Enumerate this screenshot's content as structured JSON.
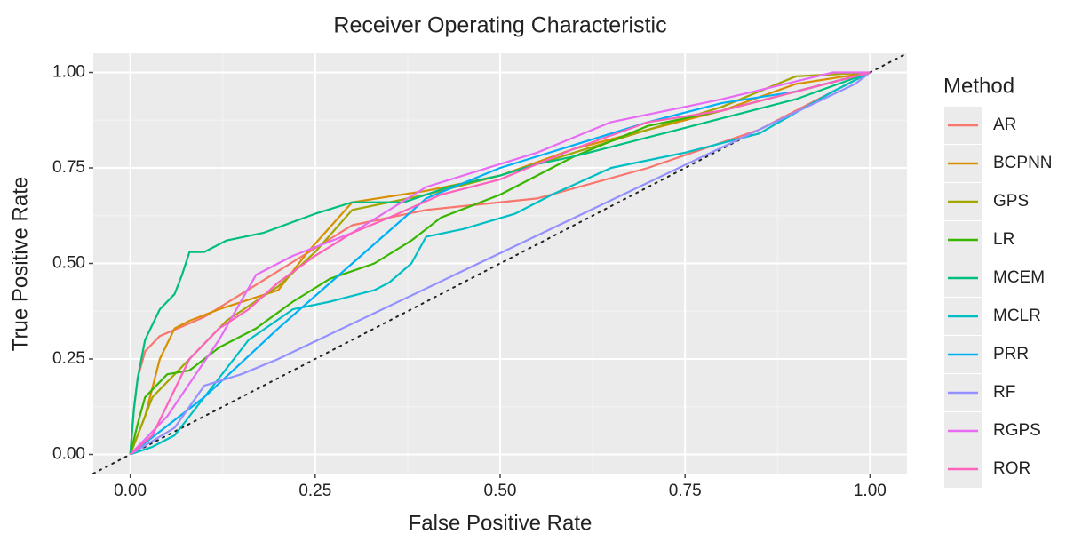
{
  "chart_data": {
    "type": "line",
    "title": "Receiver Operating Characteristic",
    "xlabel": "False Positive Rate",
    "ylabel": "True Positive Rate",
    "legend_title": "Method",
    "legend": "right",
    "grid": true,
    "xlim": [
      -0.05,
      1.05
    ],
    "ylim": [
      -0.05,
      1.05
    ],
    "xticks": [
      {
        "value": 0,
        "label": "0.00"
      },
      {
        "value": 0.25,
        "label": "0.25"
      },
      {
        "value": 0.5,
        "label": "0.50"
      },
      {
        "value": 0.75,
        "label": "0.75"
      },
      {
        "value": 1,
        "label": "1.00"
      }
    ],
    "yticks": [
      {
        "value": 0,
        "label": "0.00"
      },
      {
        "value": 0.25,
        "label": "0.25"
      },
      {
        "value": 0.5,
        "label": "0.50"
      },
      {
        "value": 0.75,
        "label": "0.75"
      },
      {
        "value": 1,
        "label": "1.00"
      }
    ],
    "series": [
      {
        "name": "AR",
        "color": "#F8766D",
        "x": [
          0,
          0.005,
          0.01,
          0.02,
          0.04,
          0.1,
          0.2,
          0.3,
          0.4,
          0.55,
          0.7,
          0.85,
          1
        ],
        "values": [
          0,
          0.12,
          0.2,
          0.27,
          0.31,
          0.36,
          0.48,
          0.6,
          0.64,
          0.67,
          0.75,
          0.85,
          1
        ]
      },
      {
        "name": "BCPNN",
        "color": "#D89000",
        "x": [
          0,
          0.02,
          0.04,
          0.06,
          0.08,
          0.12,
          0.2,
          0.24,
          0.3,
          0.4,
          0.5,
          0.6,
          0.7,
          0.8,
          0.9,
          1
        ],
        "values": [
          0,
          0.1,
          0.25,
          0.33,
          0.35,
          0.38,
          0.43,
          0.53,
          0.66,
          0.69,
          0.73,
          0.8,
          0.85,
          0.9,
          0.97,
          1
        ]
      },
      {
        "name": "GPS",
        "color": "#A3A500",
        "x": [
          0,
          0.03,
          0.08,
          0.13,
          0.2,
          0.25,
          0.3,
          0.4,
          0.5,
          0.6,
          0.7,
          0.8,
          0.9,
          1
        ],
        "values": [
          0,
          0.15,
          0.25,
          0.35,
          0.44,
          0.53,
          0.64,
          0.68,
          0.73,
          0.79,
          0.85,
          0.91,
          0.99,
          1
        ]
      },
      {
        "name": "LR",
        "color": "#39B600",
        "x": [
          0,
          0.01,
          0.02,
          0.05,
          0.08,
          0.12,
          0.17,
          0.22,
          0.27,
          0.33,
          0.38,
          0.42,
          0.5,
          0.55,
          0.6,
          0.65,
          0.7,
          0.8,
          0.9,
          1
        ],
        "values": [
          0,
          0.08,
          0.15,
          0.21,
          0.22,
          0.28,
          0.33,
          0.4,
          0.46,
          0.5,
          0.56,
          0.62,
          0.68,
          0.73,
          0.78,
          0.82,
          0.86,
          0.9,
          0.95,
          1
        ]
      },
      {
        "name": "MCEM",
        "color": "#00BF7D",
        "x": [
          0,
          0.005,
          0.01,
          0.02,
          0.04,
          0.06,
          0.07,
          0.08,
          0.1,
          0.13,
          0.18,
          0.25,
          0.3,
          0.37,
          0.43,
          0.5,
          0.55,
          0.6,
          0.7,
          0.8,
          0.9,
          1
        ],
        "values": [
          0,
          0.12,
          0.2,
          0.3,
          0.38,
          0.42,
          0.47,
          0.53,
          0.53,
          0.56,
          0.58,
          0.63,
          0.66,
          0.66,
          0.7,
          0.73,
          0.76,
          0.78,
          0.83,
          0.88,
          0.93,
          1
        ]
      },
      {
        "name": "MCLR",
        "color": "#00BFC4",
        "x": [
          0,
          0.03,
          0.06,
          0.08,
          0.12,
          0.16,
          0.22,
          0.27,
          0.33,
          0.35,
          0.38,
          0.4,
          0.45,
          0.52,
          0.57,
          0.65,
          0.75,
          0.85,
          0.95,
          1
        ],
        "values": [
          0,
          0.02,
          0.05,
          0.1,
          0.2,
          0.3,
          0.38,
          0.4,
          0.43,
          0.45,
          0.5,
          0.57,
          0.59,
          0.63,
          0.68,
          0.75,
          0.79,
          0.84,
          0.95,
          1
        ]
      },
      {
        "name": "PRR",
        "color": "#00B0F6",
        "x": [
          0,
          0.1,
          0.2,
          0.3,
          0.4,
          0.5,
          0.6,
          0.7,
          0.8,
          0.9,
          1
        ],
        "values": [
          0,
          0.15,
          0.33,
          0.5,
          0.67,
          0.75,
          0.81,
          0.87,
          0.92,
          0.95,
          1
        ]
      },
      {
        "name": "RF",
        "color": "#9590FF",
        "x": [
          0,
          0.06,
          0.1,
          0.15,
          0.2,
          0.98,
          1
        ],
        "values": [
          0,
          0.07,
          0.18,
          0.21,
          0.25,
          0.97,
          1
        ]
      },
      {
        "name": "RGPS",
        "color": "#E76BF3",
        "x": [
          0,
          0.05,
          0.12,
          0.17,
          0.22,
          0.3,
          0.35,
          0.4,
          0.45,
          0.55,
          0.65,
          0.8,
          0.95,
          1
        ],
        "values": [
          0,
          0.1,
          0.3,
          0.47,
          0.52,
          0.58,
          0.64,
          0.7,
          0.73,
          0.79,
          0.87,
          0.93,
          1,
          1
        ]
      },
      {
        "name": "ROR",
        "color": "#FF62BC",
        "x": [
          0,
          0.03,
          0.08,
          0.12,
          0.16,
          0.2,
          0.25,
          0.3,
          0.35,
          0.42,
          0.5,
          0.6,
          0.7,
          0.8,
          0.9,
          1
        ],
        "values": [
          0,
          0.05,
          0.25,
          0.33,
          0.38,
          0.45,
          0.52,
          0.58,
          0.62,
          0.68,
          0.72,
          0.8,
          0.87,
          0.9,
          0.95,
          1
        ]
      }
    ]
  }
}
